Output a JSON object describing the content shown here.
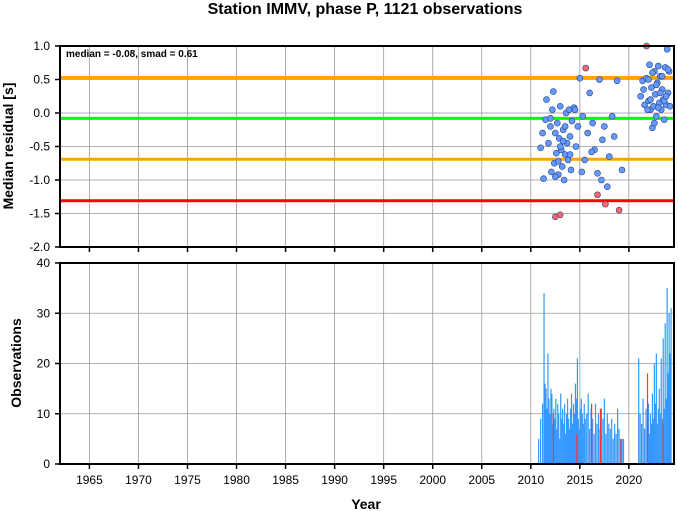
{
  "chart_data": [
    {
      "type": "scatter",
      "title": "Station IMMV, phase P, 1121 observations",
      "annotation": "median = -0.08, smad = 0.61",
      "ylabel": "Median residual [s]",
      "xlabel": "",
      "xlim": [
        1962,
        2024.6
      ],
      "ylim": [
        -2.0,
        1.0
      ],
      "xticks": [
        1965,
        1970,
        1975,
        1980,
        1985,
        1990,
        1995,
        2000,
        2005,
        2010,
        2015,
        2020
      ],
      "yticks": [
        1.0,
        0.5,
        0.0,
        -0.5,
        -1.0,
        -1.5,
        -2.0
      ],
      "ytick_labels": [
        "1.0",
        "0.5",
        "0.0",
        "-0.5",
        "-1.0",
        "-1.5",
        "-2.0"
      ],
      "grid": true,
      "reference_lines": [
        {
          "y": 0.53,
          "color": "#ffa500"
        },
        {
          "y": -0.08,
          "color": "#00ff00"
        },
        {
          "y": -0.69,
          "color": "#ffa500"
        },
        {
          "y": -1.31,
          "color": "#ff0000"
        }
      ],
      "series": [
        {
          "color": "#6699ff",
          "x": [
            2011.0,
            2011.3,
            2011.5,
            2011.6,
            2011.8,
            2012.0,
            2012.1,
            2012.2,
            2012.3,
            2012.4,
            2012.5,
            2012.6,
            2012.7,
            2012.8,
            2012.9,
            2013.0,
            2013.1,
            2013.2,
            2013.3,
            2013.4,
            2013.5,
            2013.6,
            2013.7,
            2013.8,
            2013.9,
            2014.0,
            2014.1,
            2014.2,
            2014.4,
            2014.6,
            2014.8,
            2015.0,
            2015.3,
            2015.5,
            2015.8,
            2016.0,
            2016.3,
            2016.5,
            2016.8,
            2017.0,
            2017.3,
            2017.5,
            2017.8,
            2018.0,
            2018.3,
            2018.8,
            2019.3,
            2021.2,
            2021.4,
            2021.6,
            2021.8,
            2022.0,
            2022.1,
            2022.2,
            2022.3,
            2022.4,
            2022.5,
            2022.6,
            2022.7,
            2022.8,
            2022.9,
            2023.0,
            2023.1,
            2023.2,
            2023.3,
            2023.4,
            2023.5,
            2023.6,
            2023.7,
            2023.8,
            2023.9,
            2024.0,
            2024.1,
            2024.2,
            2021.5,
            2021.9,
            2022.0,
            2022.2,
            2022.4,
            2022.6,
            2022.8,
            2023.0,
            2023.2,
            2023.4,
            2023.6,
            2023.8,
            2024.0,
            2012.0,
            2012.5,
            2013.0,
            2013.5,
            2014.0,
            2014.5,
            2011.2,
            2012.8,
            2013.3,
            2015.2,
            2016.2,
            2017.2,
            2018.5
          ],
          "y": [
            -0.52,
            -0.98,
            -0.1,
            0.2,
            -0.45,
            -0.2,
            -0.88,
            0.05,
            0.32,
            -0.75,
            -0.3,
            -0.6,
            -0.15,
            -0.92,
            -0.38,
            0.1,
            -0.55,
            -0.8,
            -0.25,
            -1.0,
            -0.62,
            0.0,
            -0.45,
            -0.7,
            0.05,
            -0.35,
            -0.85,
            -0.12,
            0.08,
            -0.5,
            -0.2,
            0.52,
            -0.05,
            -0.7,
            -0.3,
            0.3,
            -0.15,
            -0.55,
            -0.9,
            0.5,
            -0.4,
            -0.2,
            -1.1,
            -0.65,
            -0.05,
            0.48,
            -0.85,
            0.25,
            0.48,
            0.12,
            0.52,
            0.18,
            0.72,
            0.05,
            0.38,
            -0.22,
            0.1,
            0.62,
            0.28,
            -0.05,
            0.45,
            0.7,
            0.15,
            0.55,
            0.05,
            0.35,
            0.2,
            -0.1,
            0.68,
            0.12,
            0.95,
            0.3,
            0.62,
            0.1,
            0.35,
            0.05,
            0.5,
            0.2,
            0.6,
            -0.15,
            0.42,
            0.08,
            0.3,
            0.55,
            0.18,
            0.25,
            0.65,
            -0.08,
            -0.95,
            -0.5,
            -0.2,
            -0.62,
            0.05,
            -0.3,
            -0.72,
            -0.42,
            -0.88,
            -0.58,
            -1.0,
            -0.35
          ]
        },
        {
          "color": "#ff6666",
          "x": [
            2012.5,
            2013.0,
            2015.6,
            2016.8,
            2017.6,
            2019.0,
            2021.8
          ],
          "y": [
            -1.55,
            -1.52,
            0.67,
            -1.22,
            -1.36,
            -1.45,
            1.0
          ]
        }
      ]
    },
    {
      "type": "bar",
      "xlabel": "Year",
      "ylabel": "Observations",
      "xlim": [
        1962,
        2024.6
      ],
      "ylim": [
        0,
        40
      ],
      "xticks": [
        1965,
        1970,
        1975,
        1980,
        1985,
        1990,
        1995,
        2000,
        2005,
        2010,
        2015,
        2020
      ],
      "yticks": [
        0,
        10,
        20,
        30,
        40
      ],
      "grid": true,
      "series": [
        {
          "color": "#3399ff",
          "x": [
            2010.8,
            2011.0,
            2011.2,
            2011.35,
            2011.45,
            2011.55,
            2011.65,
            2011.75,
            2011.85,
            2011.95,
            2012.05,
            2012.15,
            2012.25,
            2012.35,
            2012.45,
            2012.55,
            2012.65,
            2012.75,
            2012.85,
            2012.95,
            2013.05,
            2013.15,
            2013.25,
            2013.35,
            2013.45,
            2013.55,
            2013.65,
            2013.75,
            2013.85,
            2013.95,
            2014.05,
            2014.15,
            2014.25,
            2014.35,
            2014.45,
            2014.55,
            2014.65,
            2014.75,
            2014.85,
            2014.95,
            2015.05,
            2015.15,
            2015.25,
            2015.35,
            2015.45,
            2015.55,
            2015.7,
            2015.85,
            2016.0,
            2016.15,
            2016.3,
            2016.45,
            2016.6,
            2016.75,
            2016.9,
            2017.05,
            2017.2,
            2017.35,
            2017.5,
            2017.65,
            2017.8,
            2017.95,
            2018.1,
            2018.25,
            2018.4,
            2018.55,
            2018.7,
            2018.85,
            2019.0,
            2019.15,
            2019.3,
            2019.45,
            2021.0,
            2021.15,
            2021.3,
            2021.45,
            2021.6,
            2021.75,
            2021.9,
            2022.0,
            2022.1,
            2022.2,
            2022.3,
            2022.4,
            2022.5,
            2022.6,
            2022.7,
            2022.8,
            2022.9,
            2023.0,
            2023.1,
            2023.2,
            2023.3,
            2023.4,
            2023.5,
            2023.6,
            2023.7,
            2023.8,
            2023.9,
            2024.0,
            2024.1,
            2024.2,
            2024.3
          ],
          "values": [
            5,
            9,
            12,
            34,
            16,
            15,
            11,
            22,
            13,
            10,
            15,
            14,
            8,
            11,
            9,
            13,
            7,
            12,
            10,
            5,
            14,
            9,
            11,
            8,
            12,
            6,
            10,
            13,
            9,
            7,
            11,
            14,
            8,
            12,
            10,
            16,
            13,
            21,
            9,
            7,
            11,
            13,
            10,
            8,
            12,
            9,
            10,
            14,
            7,
            11,
            9,
            6,
            12,
            8,
            10,
            7,
            11,
            9,
            13,
            6,
            10,
            8,
            7,
            9,
            5,
            8,
            6,
            11,
            7,
            5,
            5,
            5,
            21,
            10,
            8,
            13,
            7,
            11,
            9,
            12,
            6,
            10,
            8,
            14,
            9,
            20,
            12,
            22,
            8,
            11,
            15,
            10,
            21,
            9,
            25,
            11,
            28,
            13,
            35,
            18,
            30,
            22,
            31
          ]
        },
        {
          "color": "#ff3333",
          "x": [
            2012.3,
            2014.7,
            2016.2,
            2017.1,
            2019.2,
            2021.9,
            2023.5
          ],
          "values": [
            10,
            6,
            12,
            11,
            5,
            18,
            8
          ]
        }
      ]
    }
  ]
}
